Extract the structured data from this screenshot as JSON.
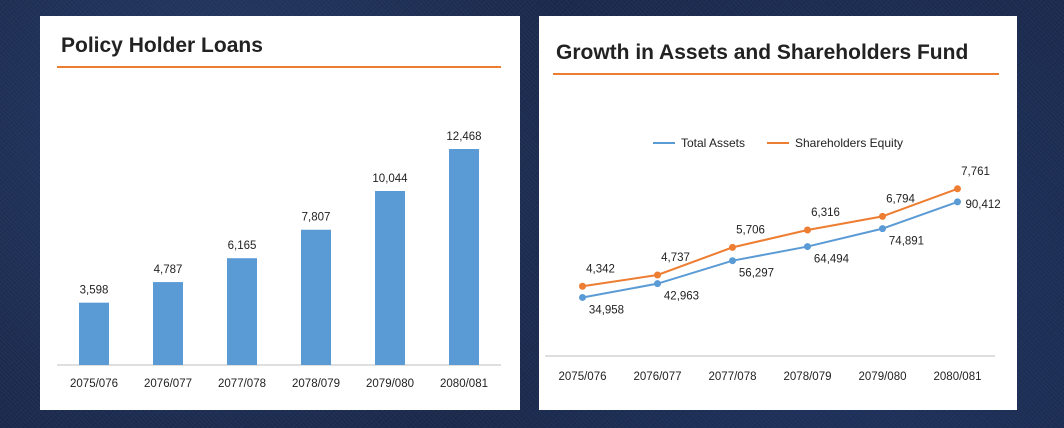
{
  "chart_data": [
    {
      "type": "bar",
      "title": "Policy Holder Loans",
      "categories": [
        "2075/076",
        "2076/077",
        "2077/078",
        "2078/079",
        "2079/080",
        "2080/081"
      ],
      "values": [
        3598,
        4787,
        6165,
        7807,
        10044,
        12468
      ],
      "value_labels": [
        "3,598",
        "4,787",
        "6,165",
        "7,807",
        "10,044",
        "12,468"
      ],
      "ylim": [
        0,
        14000
      ],
      "grid": false,
      "colors": {
        "bar": "#5b9bd5",
        "accent": "#ed7d31"
      }
    },
    {
      "type": "line",
      "title": "Growth in Assets and Shareholders Fund",
      "categories": [
        "2075/076",
        "2076/077",
        "2077/078",
        "2078/079",
        "2079/080",
        "2080/081"
      ],
      "series": [
        {
          "name": "Total Assets",
          "values": [
            34958,
            42963,
            56297,
            64494,
            74891,
            90412
          ],
          "labels": [
            "34,958",
            "42,963",
            "56,297",
            "64,494",
            "74,891",
            "90,412"
          ],
          "color": "#5b9bd5"
        },
        {
          "name": "Shareholders Equity",
          "values": [
            4342,
            4737,
            5706,
            6316,
            6794,
            7761
          ],
          "labels": [
            "4,342",
            "4,737",
            "5,706",
            "6,316",
            "6,794",
            "7,761"
          ],
          "color": "#ed7d31"
        }
      ],
      "legend": "top-center",
      "grid": false
    }
  ]
}
